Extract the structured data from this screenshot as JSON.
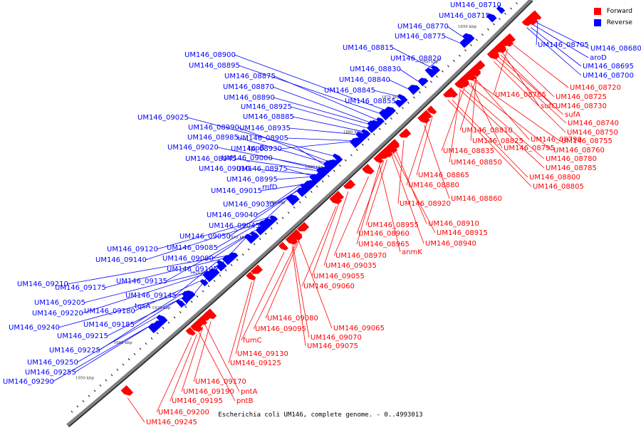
{
  "caption": "Escherichia coli UM146, complete genome. - 0..4993013",
  "legend": {
    "forward": {
      "label": "Forward",
      "color": "#ff0000"
    },
    "reverse": {
      "label": "Reverse",
      "color": "#0000ff"
    }
  },
  "colors": {
    "forward": "#ff0000",
    "reverse": "#0000ff",
    "backbone": "#808080"
  },
  "ticks": [
    "1840 kbp",
    "1850 kbp",
    "1860 kbp",
    "1870 kbp",
    "1880 kbp",
    "1890 kbp",
    "1900 kbp",
    "1910 kbp",
    "1920 kbp",
    "1930 kbp",
    "1940 kbp",
    "1950 kbp"
  ],
  "reverse_labels": [
    "UM146_08710",
    "UM146_08715",
    "UM146_08770",
    "UM146_08775",
    "UM146_08815",
    "UM146_08820",
    "UM146_08830",
    "UM146_08840",
    "UM146_08845",
    "UM146_08855",
    "UM146_08900",
    "UM146_08895",
    "UM146_08875",
    "UM146_08870",
    "UM146_08890",
    "UM146_08925",
    "UM146_08885",
    "UM146_08935",
    "UM146_08905",
    "UM146_08930",
    "UM146_09025",
    "UM146_08990",
    "UM146_08985",
    "tppB",
    "UM146_09020",
    "UM146_09000",
    "UM146_08945",
    "UM146_09010",
    "UM146_08975",
    "UM146_08995",
    "rnfD",
    "UM146_09015",
    "UM146_09030",
    "UM146_09040",
    "UM146_09045",
    "UM146_09050",
    "UM146_09120",
    "UM146_09085",
    "UM146_09140",
    "UM146_09090",
    "UM146_09105",
    "UM146_09135",
    "UM146_09210",
    "UM146_09175",
    "UM146_09145",
    "tqsA",
    "UM146_09205",
    "UM146_09220",
    "UM146_09180",
    "UM146_09240",
    "UM146_09185",
    "UM146_09215",
    "UM146_09225",
    "UM146_09250",
    "UM146_09255",
    "UM146_09290",
    "UM146_08705",
    "UM146_08680",
    "aroD",
    "UM146_08695",
    "UM146_08700"
  ],
  "forward_labels": [
    "UM146_08720",
    "UM146_08765",
    "UM146_08725",
    "sufC",
    "UM146_08730",
    "sufA",
    "UM146_08740",
    "UM146_08750",
    "UM146_08810",
    "UM146_08825",
    "UM146_08790",
    "UM146_08755",
    "UM146_08835",
    "UM146_08795",
    "UM146_08760",
    "UM146_08850",
    "UM146_08780",
    "UM146_08785",
    "UM146_08865",
    "UM146_08800",
    "UM146_08805",
    "UM146_08880",
    "UM146_08860",
    "UM146_08920",
    "UM146_08910",
    "UM146_08955",
    "UM146_08915",
    "UM146_08960",
    "UM146_08940",
    "UM146_08965",
    "anmK",
    "UM146_08970",
    "UM146_09035",
    "UM146_09055",
    "UM146_09060",
    "UM146_09080",
    "UM146_09065",
    "UM146_09095",
    "UM146_09070",
    "fumC",
    "UM146_09075",
    "UM146_09130",
    "UM146_09125",
    "UM146_09170",
    "pntA",
    "UM146_09190",
    "UM146_09195",
    "pntB",
    "UM146_09200",
    "UM146_09245"
  ]
}
